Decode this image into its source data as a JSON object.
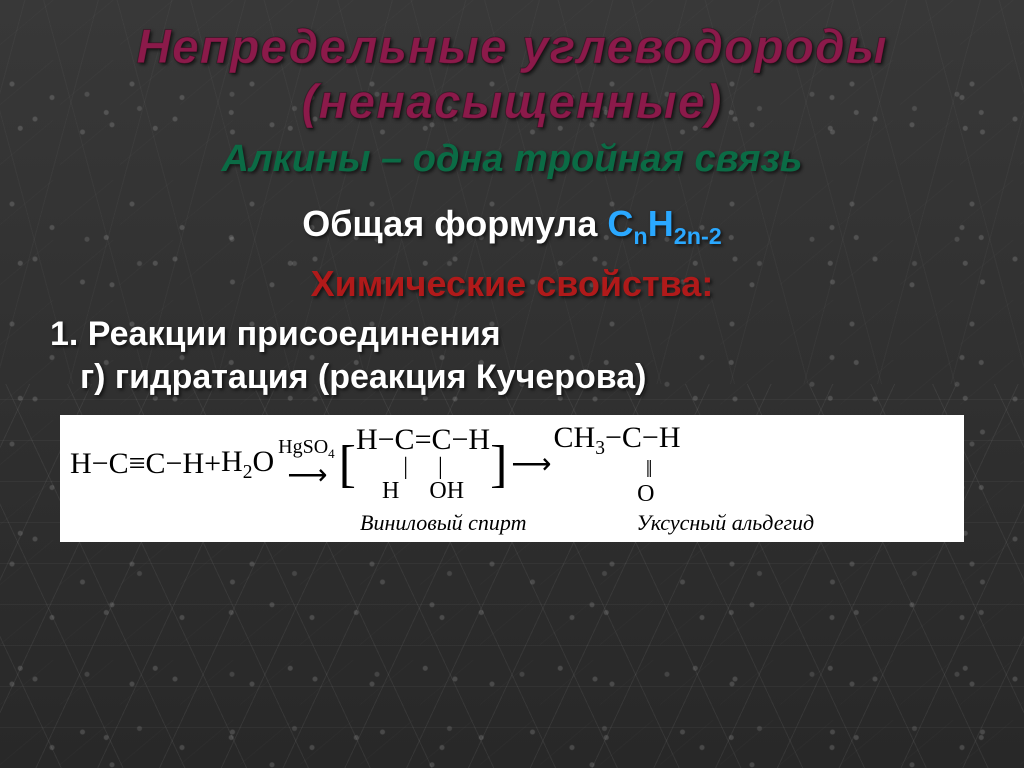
{
  "colors": {
    "title": "#8b1a4a",
    "subtitle_accent": "#0b5a3b",
    "subtitle_text": "#0b5a3b",
    "formula_text": "#ffffff",
    "formula_chem": "#2aa8ff",
    "section_head": "#b01a1a",
    "body_text": "#ffffff",
    "reaction_bg": "#ffffff",
    "reaction_text": "#000000"
  },
  "title": {
    "line1": "Непредельные углеводороды",
    "line2": "(ненасыщенные)"
  },
  "subtitle": {
    "term": "Алкины",
    "rest": " – одна тройная связь"
  },
  "formula": {
    "label": "Общая формула ",
    "chem_parts": [
      "C",
      "n",
      "H",
      "2n-2"
    ]
  },
  "section": "Химические свойства:",
  "body": {
    "line1": "1. Реакции присоединения",
    "line2": "г) гидратация (реакция Кучерова)"
  },
  "reaction": {
    "reactant1": "H−C≡C−H",
    "plus": " + ",
    "reactant2": "H",
    "reactant2_sub": "2",
    "reactant2_rest": "O",
    "catalyst": "HgSO",
    "catalyst_sub": "4",
    "intermediate_main": "H−C=C−H",
    "intermediate_sub1_left": "H",
    "intermediate_sub1_right": "OH",
    "product_main": "CH",
    "product_main_sub": "3",
    "product_main_rest": "−C−H",
    "product_dbl": "‖",
    "product_o": "O",
    "label_intermediate": "Виниловый спирт",
    "label_product": "Уксусный альдегид"
  }
}
